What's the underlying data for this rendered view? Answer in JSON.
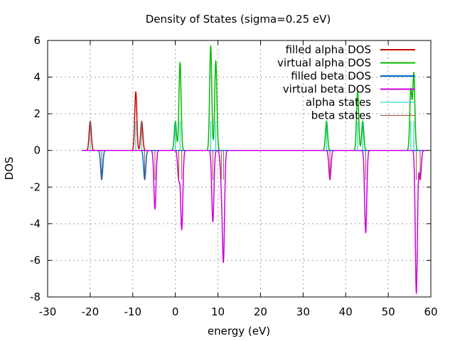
{
  "chart_data": {
    "type": "line",
    "title": "Density of States (sigma=0.25 eV)",
    "xlabel": "energy (eV)",
    "ylabel": "DOS",
    "xlim": [
      -30,
      60
    ],
    "ylim": [
      -8,
      6
    ],
    "xticks": [
      -30,
      -20,
      -10,
      0,
      10,
      20,
      30,
      40,
      50,
      60
    ],
    "yticks": [
      -8,
      -6,
      -4,
      -2,
      0,
      2,
      4,
      6
    ],
    "grid": true,
    "legend_position": "top-right",
    "sigma": 0.25,
    "series": [
      {
        "name": "filled alpha DOS",
        "color": "#cc0000",
        "sign": 1,
        "peaks": [
          [
            -20.0,
            1.6
          ],
          [
            -9.3,
            3.2
          ],
          [
            -7.9,
            1.6
          ]
        ]
      },
      {
        "name": "virtual alpha DOS",
        "color": "#00bb00",
        "sign": 1,
        "peaks": [
          [
            0.0,
            1.6
          ],
          [
            1.1,
            4.8
          ],
          [
            8.3,
            5.7
          ],
          [
            9.5,
            4.9
          ],
          [
            35.5,
            1.6
          ],
          [
            42.8,
            3.2
          ],
          [
            44.0,
            1.6
          ],
          [
            55.3,
            3.3
          ],
          [
            56.0,
            4.2
          ]
        ]
      },
      {
        "name": "filled beta DOS",
        "color": "#0066cc",
        "sign": -1,
        "peaks": [
          [
            -17.3,
            1.6
          ],
          [
            -7.2,
            1.6
          ]
        ]
      },
      {
        "name": "virtual beta DOS",
        "color": "#cc00dd",
        "sign": -1,
        "peaks": [
          [
            -4.8,
            3.2
          ],
          [
            0.8,
            1.6
          ],
          [
            1.5,
            4.3
          ],
          [
            8.8,
            3.9
          ],
          [
            10.8,
            1.6
          ],
          [
            11.3,
            5.9
          ],
          [
            36.3,
            1.6
          ],
          [
            44.7,
            4.5
          ],
          [
            56.6,
            7.8
          ],
          [
            57.5,
            1.6
          ]
        ]
      }
    ],
    "state_markers": [
      {
        "name": "alpha states",
        "color": "#00cccc",
        "height": 1.6,
        "positions": [
          -20.0,
          -9.3,
          -7.9,
          0.0,
          1.1,
          8.3,
          9.5,
          35.5,
          42.8,
          44.0,
          55.3,
          56.0
        ]
      },
      {
        "name": "beta states",
        "color": "#a0522d",
        "height": -1.6,
        "positions": [
          -17.3,
          -7.2,
          -4.8,
          0.8,
          1.5,
          8.8,
          10.8,
          11.3,
          36.3,
          44.7,
          56.6,
          57.5
        ]
      }
    ]
  }
}
